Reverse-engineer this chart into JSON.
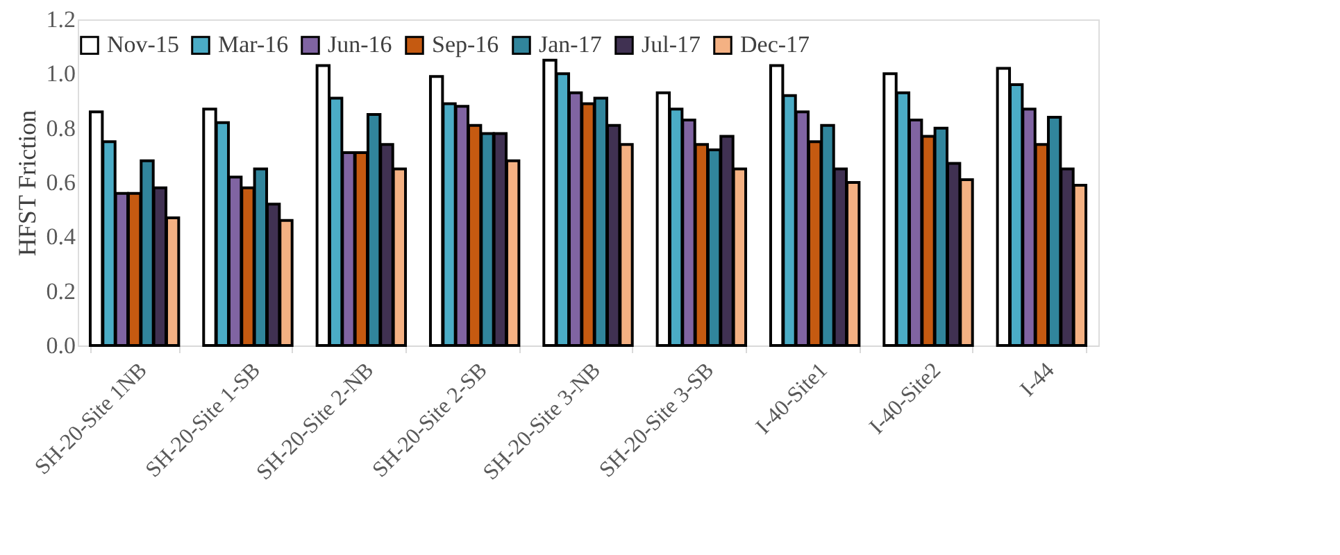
{
  "chart_data": {
    "type": "bar",
    "ylabel": "HFST Friction",
    "categories": [
      "SH-20-Site 1NB",
      "SH-20-Site 1-SB",
      "SH-20-Site 2-NB",
      "SH-20-Site 2-SB",
      "SH-20-Site 3-NB",
      "SH-20-Site 3-SB",
      "I-40-Site1",
      "I-40-Site2",
      "I-44"
    ],
    "series": [
      {
        "name": "Nov-15",
        "color": "#ffffff",
        "values": [
          0.86,
          0.87,
          1.03,
          0.99,
          1.05,
          0.93,
          1.03,
          1.0,
          1.02
        ]
      },
      {
        "name": "Mar-16",
        "color": "#4bacc6",
        "values": [
          0.75,
          0.82,
          0.91,
          0.89,
          1.0,
          0.87,
          0.92,
          0.93,
          0.96
        ]
      },
      {
        "name": "Jun-16",
        "color": "#8064a2",
        "values": [
          0.56,
          0.62,
          0.71,
          0.88,
          0.93,
          0.83,
          0.86,
          0.83,
          0.87
        ]
      },
      {
        "name": "Sep-16",
        "color": "#c55a11",
        "values": [
          0.56,
          0.58,
          0.71,
          0.81,
          0.89,
          0.74,
          0.75,
          0.77,
          0.74
        ]
      },
      {
        "name": "Jan-17",
        "color": "#31859c",
        "values": [
          0.68,
          0.65,
          0.85,
          0.78,
          0.91,
          0.72,
          0.81,
          0.8,
          0.84
        ]
      },
      {
        "name": "Jul-17",
        "color": "#403152",
        "values": [
          0.58,
          0.52,
          0.74,
          0.78,
          0.81,
          0.77,
          0.65,
          0.67,
          0.65
        ]
      },
      {
        "name": "Dec-17",
        "color": "#f4b183",
        "values": [
          0.47,
          0.46,
          0.65,
          0.68,
          0.74,
          0.65,
          0.6,
          0.61,
          0.59
        ]
      }
    ],
    "ylim": [
      0,
      1.2
    ],
    "yticks": [
      {
        "value": 0,
        "label": "0.0"
      },
      0.2,
      0.4,
      0.6,
      0.8,
      {
        "value": 1,
        "label": "1.0"
      },
      1.2
    ],
    "grid": false,
    "legend": "top"
  }
}
